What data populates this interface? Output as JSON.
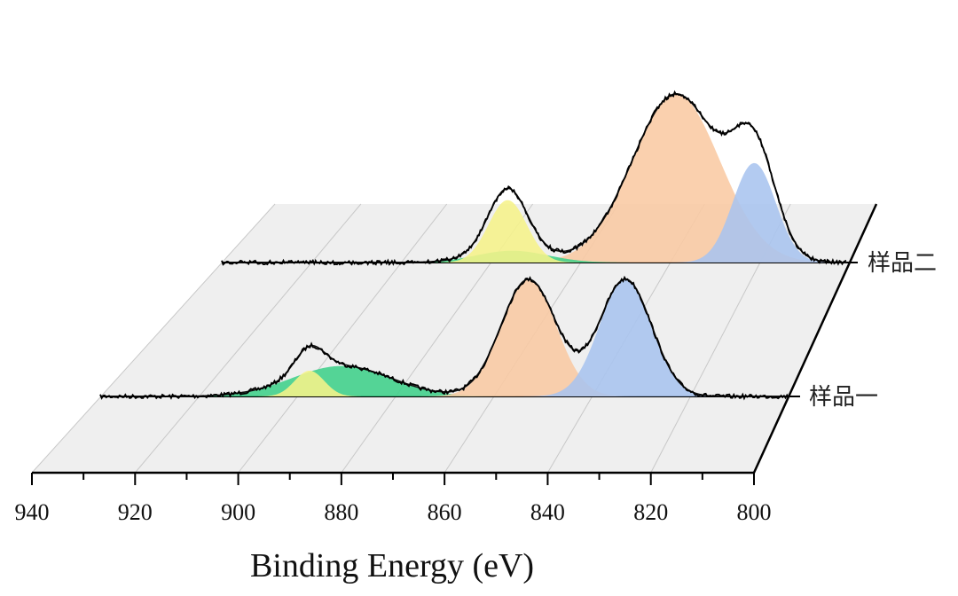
{
  "chart_data": {
    "type": "area",
    "style": "3D stacked waterfall of fitted XPS spectra",
    "xlabel": "Binding Energy (eV)",
    "xlim": [
      940,
      800
    ],
    "x_ticks": [
      940,
      920,
      900,
      880,
      860,
      840,
      820,
      800
    ],
    "x_tick_labels": [
      "940",
      "920",
      "900",
      "880",
      "860",
      "840",
      "820",
      "800"
    ],
    "grid": true,
    "series": [
      {
        "name": "样品一",
        "components": [
          {
            "center": 897.5,
            "height": 0.22,
            "sigma": 3.0,
            "color": "#f6f38a"
          },
          {
            "center": 891.0,
            "height": 0.26,
            "sigma": 10.0,
            "color": "#3fd08a"
          },
          {
            "center": 853.0,
            "height": 1.0,
            "sigma": 5.6,
            "color": "#f9caa3"
          },
          {
            "center": 833.3,
            "height": 1.0,
            "sigma": 5.3,
            "color": "#a9c4ef"
          }
        ]
      },
      {
        "name": "样品二",
        "components": [
          {
            "center": 876.0,
            "height": 0.37,
            "sigma": 4.3,
            "color": "#f6f38a"
          },
          {
            "center": 875.0,
            "height": 0.07,
            "sigma": 8.0,
            "color": "#3fd08a"
          },
          {
            "center": 838.3,
            "height": 1.0,
            "sigma": 9.8,
            "color": "#f9caa3"
          },
          {
            "center": 820.8,
            "height": 0.59,
            "sigma": 4.8,
            "color": "#a9c4ef"
          }
        ]
      }
    ]
  }
}
